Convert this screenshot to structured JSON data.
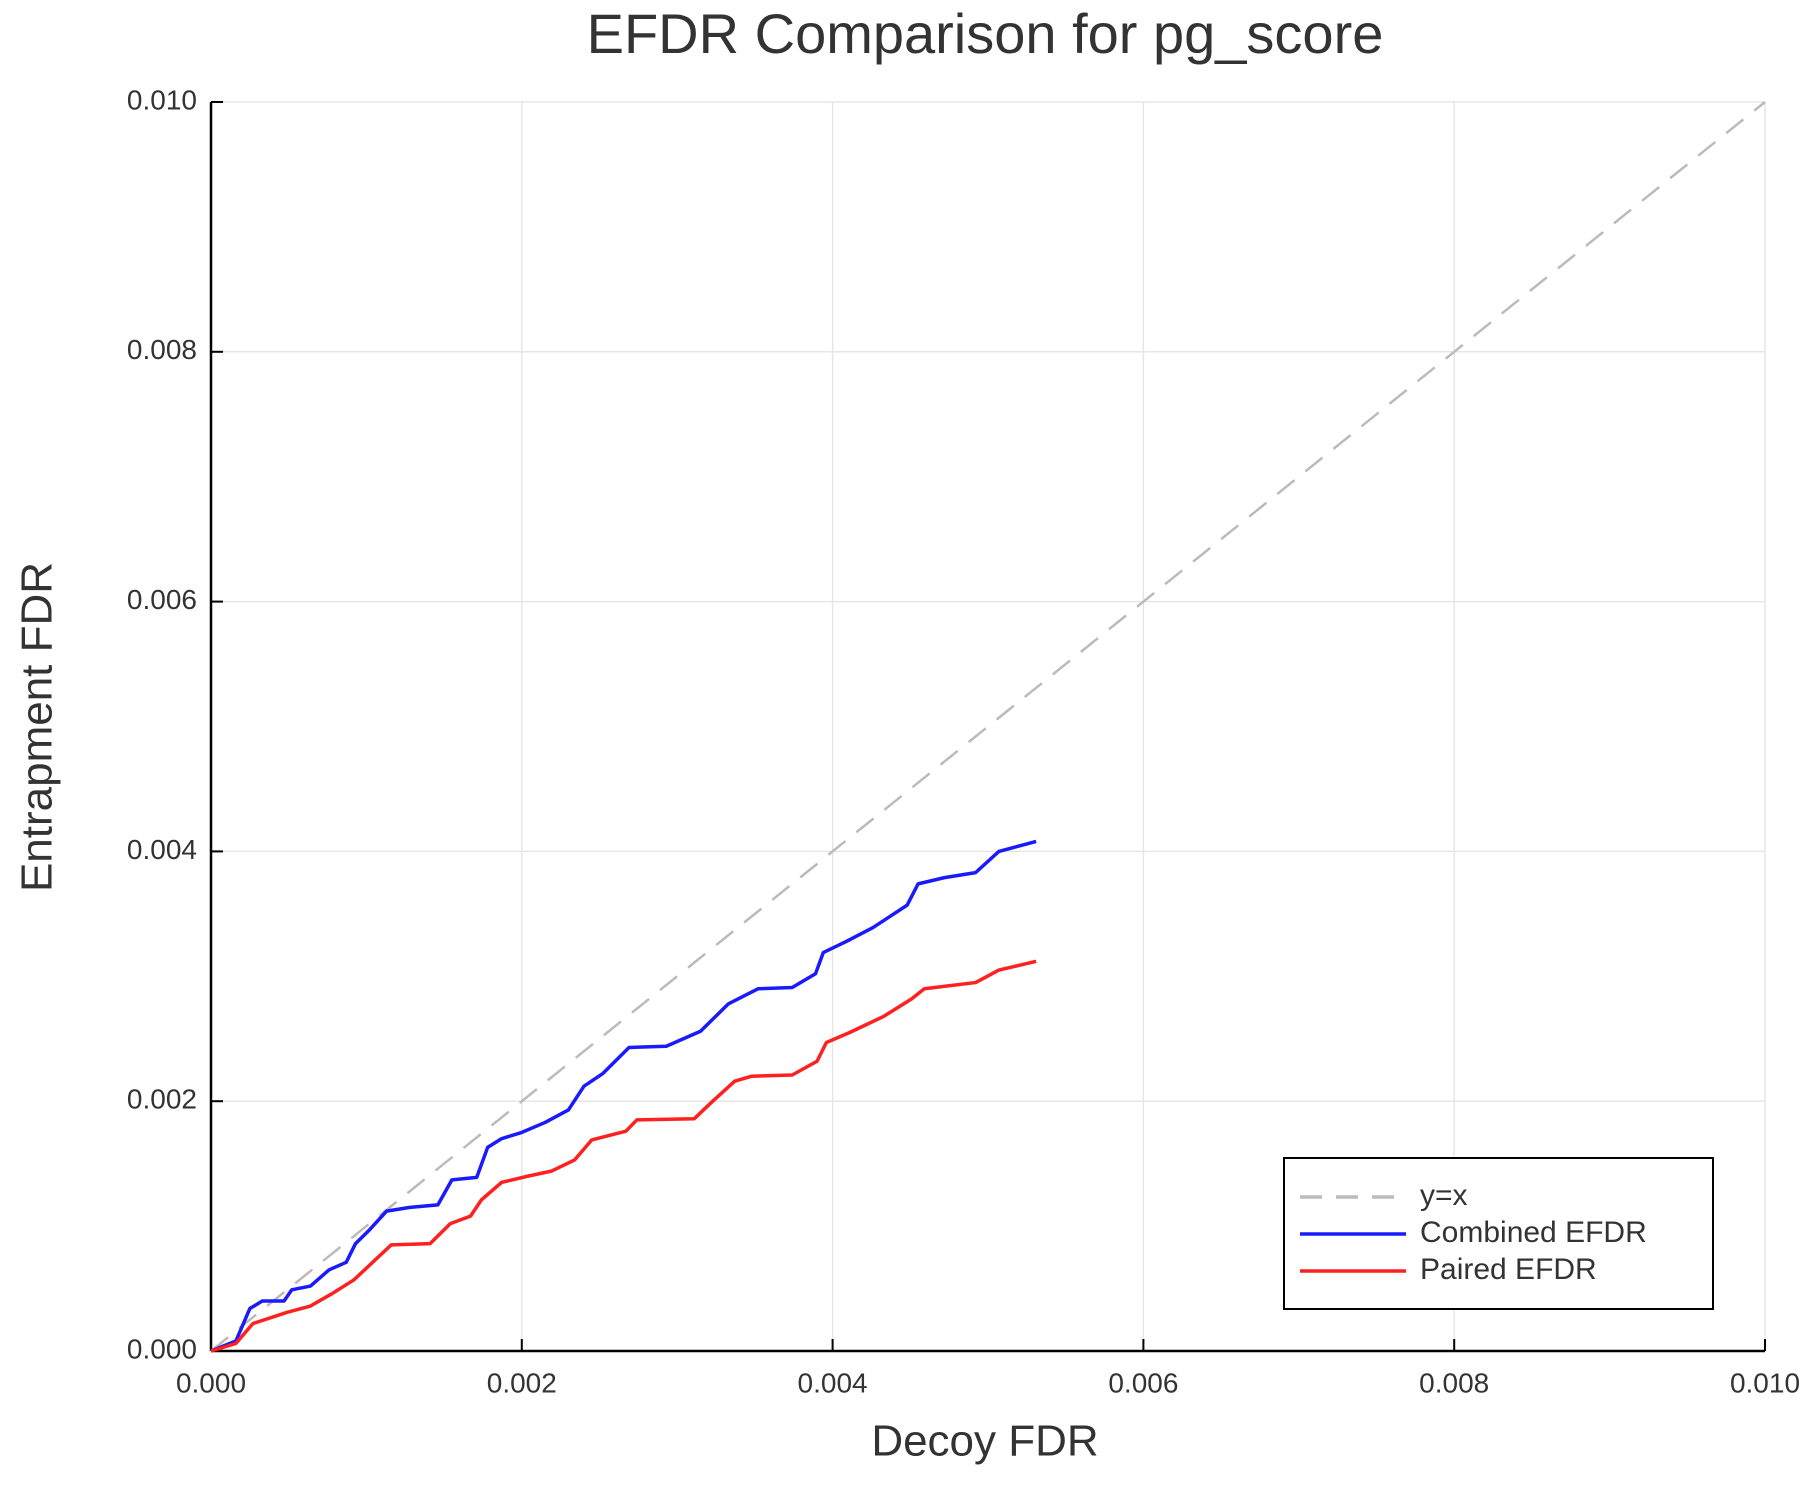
{
  "chart_data": {
    "type": "line",
    "title": "EFDR Comparison for pg_score",
    "x_label": "Decoy FDR",
    "y_label": "Entrapment FDR",
    "xlim": [
      0,
      0.01
    ],
    "ylim": [
      0,
      0.01
    ],
    "xticks": [
      {
        "value": 0,
        "label": "0.000"
      },
      0.002,
      0.004,
      0.006,
      0.008,
      {
        "value": 0.01,
        "label": "0.010"
      }
    ],
    "yticks": [
      {
        "value": 0,
        "label": "0.000"
      },
      0.002,
      0.004,
      0.006,
      0.008,
      {
        "value": 0.01,
        "label": "0.010"
      }
    ],
    "grid": true,
    "legend": "bottom right",
    "series": [
      {
        "name": "y=x",
        "color": "#bbbbbb",
        "style": "dashed",
        "x": [
          0,
          0.01
        ],
        "values": [
          0,
          0.01
        ]
      },
      {
        "name": "Combined EFDR",
        "color": "#1a1aff",
        "style": "solid",
        "x": [
          0,
          0.00016,
          0.00025,
          0.00033,
          0.00047,
          0.00052,
          0.00064,
          0.00076,
          0.00087,
          0.00093,
          0.00102,
          0.00113,
          0.00128,
          0.00146,
          0.00155,
          0.00171,
          0.00178,
          0.00187,
          0.002,
          0.00215,
          0.0023,
          0.0024,
          0.00252,
          0.00269,
          0.00293,
          0.00315,
          0.00333,
          0.00352,
          0.00374,
          0.00389,
          0.00394,
          0.00409,
          0.00426,
          0.00448,
          0.00455,
          0.00472,
          0.00492,
          0.00507,
          0.00531
        ],
        "values": [
          0,
          8e-05,
          0.00034,
          0.0004,
          0.0004,
          0.00049,
          0.00052,
          0.00065,
          0.00071,
          0.00086,
          0.00097,
          0.00112,
          0.00115,
          0.00117,
          0.00137,
          0.00139,
          0.00163,
          0.0017,
          0.00175,
          0.00183,
          0.00193,
          0.00212,
          0.00222,
          0.00243,
          0.00244,
          0.00256,
          0.00278,
          0.0029,
          0.00291,
          0.00302,
          0.00319,
          0.00328,
          0.00339,
          0.00357,
          0.00374,
          0.00379,
          0.00383,
          0.004,
          0.00408
        ]
      },
      {
        "name": "Paired EFDR",
        "color": "#ff2020",
        "style": "solid",
        "x": [
          0,
          0.00016,
          0.00027,
          0.00049,
          0.00064,
          0.00078,
          0.00092,
          0.00104,
          0.00116,
          0.00141,
          0.00154,
          0.00167,
          0.00174,
          0.00187,
          0.00204,
          0.00219,
          0.00234,
          0.00245,
          0.00267,
          0.00274,
          0.00311,
          0.00322,
          0.00337,
          0.00348,
          0.00374,
          0.0039,
          0.00396,
          0.00411,
          0.00433,
          0.00451,
          0.00459,
          0.00492,
          0.00507,
          0.00531
        ],
        "values": [
          0,
          6e-05,
          0.00022,
          0.00031,
          0.00036,
          0.00046,
          0.00057,
          0.00071,
          0.00085,
          0.00086,
          0.00102,
          0.00108,
          0.00121,
          0.00135,
          0.0014,
          0.00144,
          0.00153,
          0.00169,
          0.00176,
          0.00185,
          0.00186,
          0.00199,
          0.00216,
          0.0022,
          0.00221,
          0.00232,
          0.00247,
          0.00255,
          0.00268,
          0.00282,
          0.0029,
          0.00295,
          0.00305,
          0.00312
        ]
      }
    ]
  }
}
